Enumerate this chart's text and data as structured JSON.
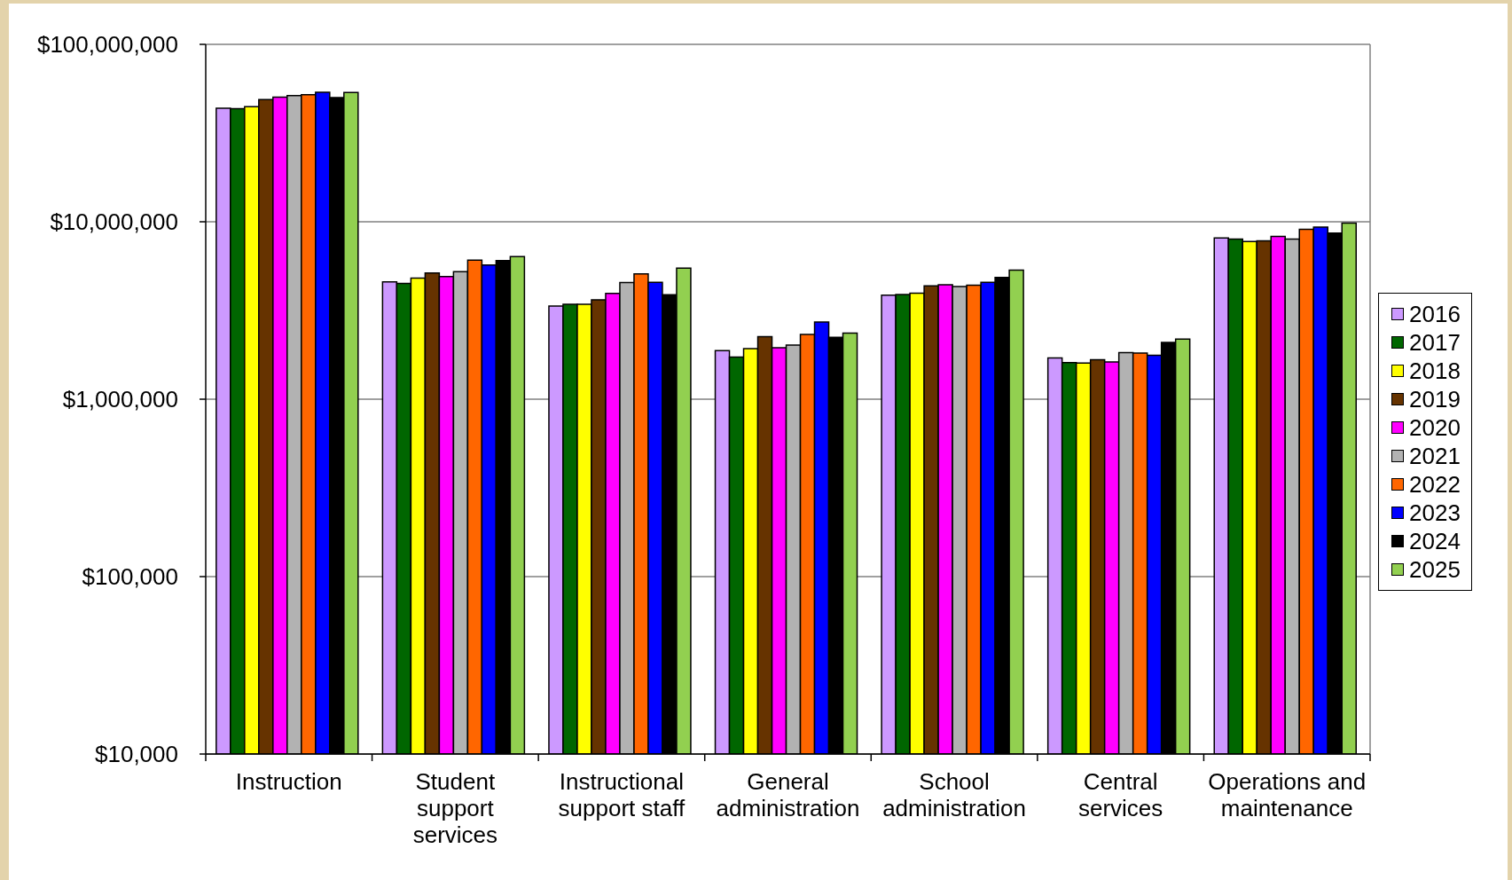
{
  "chart_data": {
    "type": "bar",
    "categories": [
      "Instruction",
      "Student support services",
      "Instructional support staff",
      "General administration",
      "School administration",
      "Central services",
      "Operations and maintenance"
    ],
    "series": [
      {
        "name": "2016",
        "color": "#cc99ff",
        "values": [
          43700000,
          4590000,
          3350000,
          1880000,
          3860000,
          1710000,
          8110000
        ]
      },
      {
        "name": "2017",
        "color": "#006600",
        "values": [
          43400000,
          4490000,
          3430000,
          1730000,
          3890000,
          1610000,
          7980000
        ]
      },
      {
        "name": "2018",
        "color": "#ffff00",
        "values": [
          44600000,
          4810000,
          3430000,
          1930000,
          3960000,
          1600000,
          7730000
        ]
      },
      {
        "name": "2019",
        "color": "#663300",
        "values": [
          48800000,
          5140000,
          3630000,
          2250000,
          4350000,
          1670000,
          7800000
        ]
      },
      {
        "name": "2020",
        "color": "#ff00ff",
        "values": [
          50400000,
          4910000,
          3950000,
          1950000,
          4410000,
          1620000,
          8280000
        ]
      },
      {
        "name": "2021",
        "color": "#b2b2b2",
        "values": [
          51500000,
          5240000,
          4540000,
          2020000,
          4310000,
          1830000,
          7980000
        ]
      },
      {
        "name": "2022",
        "color": "#ff6600",
        "values": [
          52000000,
          6080000,
          5090000,
          2320000,
          4390000,
          1820000,
          9060000
        ]
      },
      {
        "name": "2023",
        "color": "#0000ff",
        "values": [
          53700000,
          5710000,
          4560000,
          2720000,
          4560000,
          1770000,
          9330000
        ]
      },
      {
        "name": "2024",
        "color": "#000000",
        "values": [
          50100000,
          6050000,
          3880000,
          2230000,
          4850000,
          2090000,
          8630000
        ]
      },
      {
        "name": "2025",
        "color": "#92d050",
        "values": [
          53500000,
          6370000,
          5480000,
          2360000,
          5340000,
          2180000,
          9840000
        ]
      }
    ],
    "log": "y",
    "ylim": [
      10000,
      100000000
    ],
    "yticks": [
      {
        "value": 10000,
        "label": "$10,000"
      },
      {
        "value": 100000,
        "label": "$100,000"
      },
      {
        "value": 1000000,
        "label": "$1,000,000"
      },
      {
        "value": 10000000,
        "label": "$10,000,000"
      },
      {
        "value": 100000000,
        "label": "$100,000,000"
      }
    ],
    "grid": "y",
    "legend": "right"
  }
}
